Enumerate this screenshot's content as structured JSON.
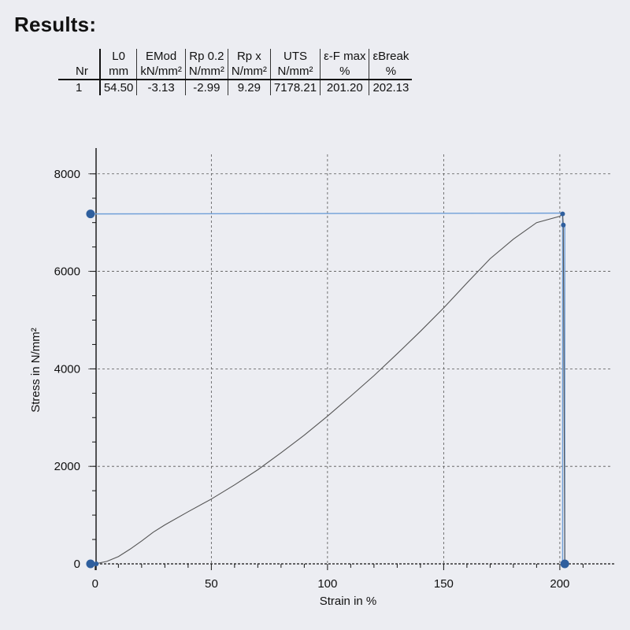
{
  "title": "Results:",
  "results_table": {
    "row_label_header": "Nr",
    "columns": [
      {
        "name": "L0",
        "unit": "mm",
        "value": "54.50"
      },
      {
        "name": "EMod",
        "unit": "kN/mm²",
        "value": "-3.13"
      },
      {
        "name": "Rp 0.2",
        "unit": "N/mm²",
        "value": "-2.99"
      },
      {
        "name": "Rp x",
        "unit": "N/mm²",
        "value": "9.29"
      },
      {
        "name": "UTS",
        "unit": "N/mm²",
        "value": "7178.21"
      },
      {
        "name": "ε-F max",
        "unit": "%",
        "value": "201.20"
      },
      {
        "name": "εBreak",
        "unit": "%",
        "value": "202.13"
      }
    ],
    "rows": [
      {
        "nr": "1"
      }
    ]
  },
  "chart_data": {
    "type": "line",
    "xlabel": "Strain in %",
    "ylabel": "Stress in N/mm²",
    "xlim": [
      -3,
      218
    ],
    "ylim": [
      0,
      8400
    ],
    "xticks": [
      0,
      50,
      100,
      150,
      200
    ],
    "yticks": [
      0,
      2000,
      4000,
      6000,
      8000
    ],
    "grid": true,
    "series": [
      {
        "x": [
          0,
          5,
          10,
          15,
          20,
          25,
          30,
          40,
          50,
          60,
          70,
          80,
          90,
          100,
          110,
          120,
          130,
          140,
          150,
          160,
          170,
          180,
          190,
          200,
          201.2,
          201.5,
          202.13
        ],
        "y": [
          0,
          50,
          150,
          300,
          470,
          650,
          800,
          1070,
          1330,
          1620,
          1930,
          2280,
          2640,
          3030,
          3440,
          3860,
          4310,
          4770,
          5250,
          5760,
          6260,
          6660,
          7000,
          7130,
          7178.21,
          6950,
          0
        ]
      }
    ],
    "markers": [
      {
        "x": 201.2,
        "y": 7178.21
      },
      {
        "x": 201.5,
        "y": 6950
      },
      {
        "x": 202.13,
        "y": 0
      },
      {
        "x": -2,
        "y": 0
      },
      {
        "x": 0.5,
        "y": 0
      },
      {
        "x": -2,
        "y": 7178.21
      }
    ],
    "uts_reference": {
      "y": 7178.21,
      "x_from": -2,
      "x_to": 201.2
    },
    "break_reference": {
      "x": 202.13
    },
    "line_color": "#555555",
    "marker_color": "#2f5f9e",
    "reference_color": "#6f9fd8"
  }
}
